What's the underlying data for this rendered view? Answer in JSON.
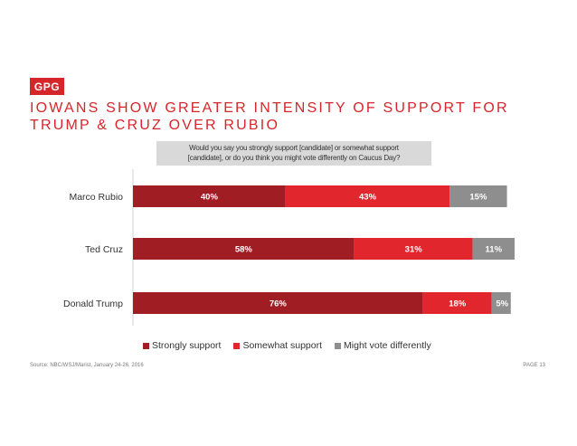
{
  "logo": {
    "text": "GPG"
  },
  "title": "IOWANS SHOW GREATER INTENSITY OF SUPPORT FOR TRUMP & CRUZ OVER RUBIO",
  "question": {
    "line1": "Would you say you strongly support [candidate] or somewhat support",
    "line2": "[candidate], or do you think you might vote differently on Caucus Day?"
  },
  "colors": {
    "strongly": "#a11d24",
    "somewhat": "#e2262e",
    "might": "#8e8e8e",
    "accent": "#d7262a"
  },
  "chart_data": {
    "type": "bar",
    "orientation": "horizontal",
    "stacked": true,
    "categories": [
      "Marco Rubio",
      "Ted Cruz",
      "Donald Trump"
    ],
    "series": [
      {
        "name": "Strongly support",
        "values": [
          40,
          58,
          76
        ],
        "labels": [
          "40%",
          "58%",
          "76%"
        ]
      },
      {
        "name": "Somewhat support",
        "values": [
          43,
          31,
          18
        ],
        "labels": [
          "43%",
          "31%",
          "18%"
        ]
      },
      {
        "name": "Might vote differently",
        "values": [
          15,
          11,
          5
        ],
        "labels": [
          "15%",
          "11%",
          "5%"
        ]
      }
    ],
    "xlim": [
      0,
      100
    ],
    "legend_position": "bottom"
  },
  "footer": {
    "source": "Source: NBC/WSJ/Marist, January 24-26, 2016",
    "page": "PAGE 13"
  }
}
